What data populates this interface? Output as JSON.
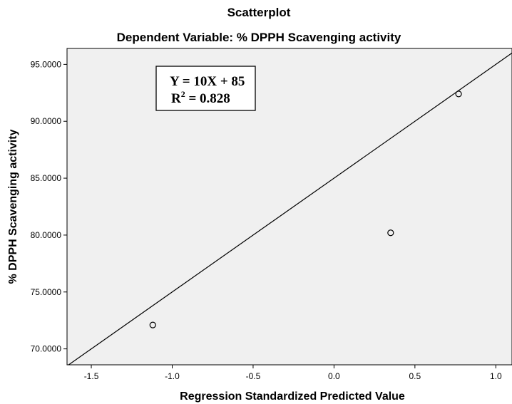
{
  "chart_data": {
    "type": "scatter",
    "title": "Scatterplot",
    "subtitle": "Dependent Variable: % DPPH Scavenging activity",
    "xlabel": "Regression Standardized Predicted Value",
    "ylabel": "% DPPH Scavenging activity",
    "xlim": [
      -1.65,
      1.1
    ],
    "ylim": [
      68.6,
      96.4
    ],
    "x_ticks": [
      -1.5,
      -1.0,
      -0.5,
      0.0,
      0.5,
      1.0
    ],
    "x_tick_labels": [
      "-1.5",
      "-1.0",
      "-0.5",
      "0.0",
      "0.5",
      "1.0"
    ],
    "y_ticks": [
      70,
      75,
      80,
      85,
      90,
      95
    ],
    "y_tick_labels": [
      "70.0000",
      "75.0000",
      "80.0000",
      "85.0000",
      "90.0000",
      "95.0000"
    ],
    "points": [
      {
        "x": -1.12,
        "y": 72.1
      },
      {
        "x": 0.35,
        "y": 80.2
      },
      {
        "x": 0.77,
        "y": 92.4
      }
    ],
    "fit_line": {
      "slope": 10,
      "intercept": 85
    },
    "annotation": {
      "line1": "Y = 10X + 85",
      "r_label": "R",
      "r_sup": "2",
      "r_value": " = 0.828"
    },
    "grid": false,
    "plot_background": "#f0f0f0"
  }
}
